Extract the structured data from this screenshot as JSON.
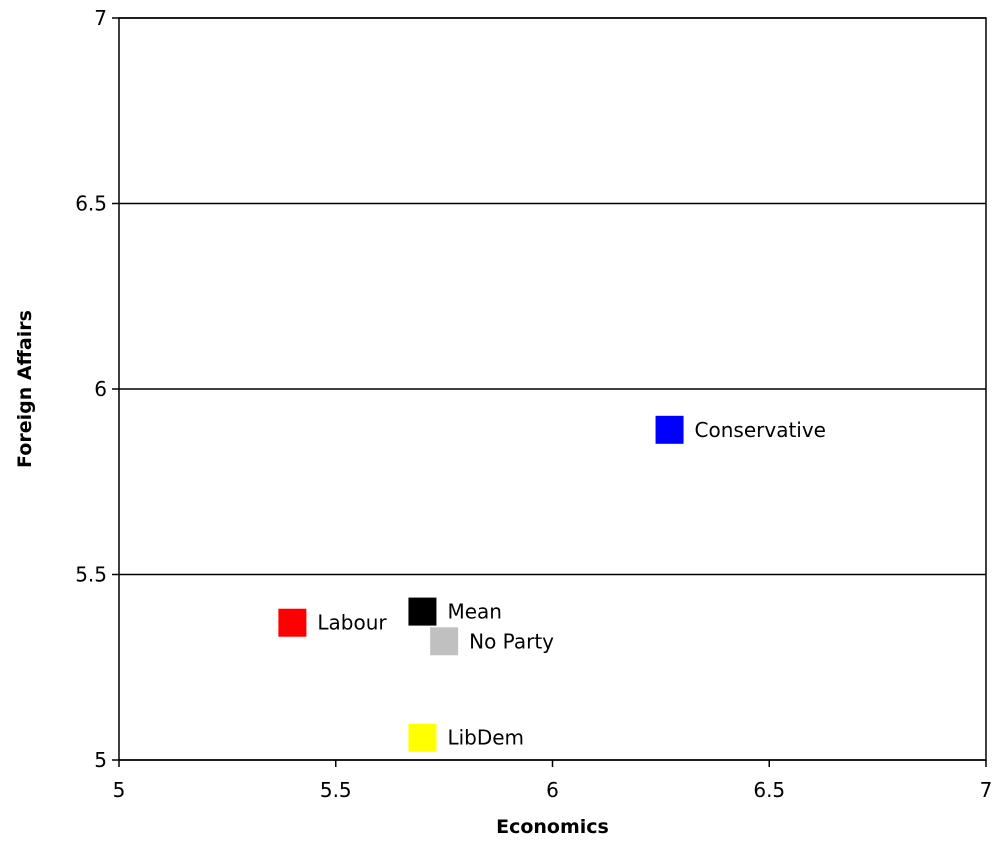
{
  "chart_data": {
    "type": "scatter",
    "title": "",
    "xlabel": "Economics",
    "ylabel": "Foreign Affairs",
    "xlim": [
      5,
      7
    ],
    "ylim": [
      5,
      7
    ],
    "x_ticks": [
      "5",
      "5.5",
      "6",
      "6.5",
      "7"
    ],
    "y_ticks": [
      "5",
      "5.5",
      "6",
      "6.5",
      "7"
    ],
    "grid": "horizontal",
    "legend": "none",
    "points": [
      {
        "label": "Conservative",
        "x": 6.27,
        "y": 5.89,
        "color": "#0000ff"
      },
      {
        "label": "Labour",
        "x": 5.4,
        "y": 5.37,
        "color": "#ff0000"
      },
      {
        "label": "Mean",
        "x": 5.7,
        "y": 5.4,
        "color": "#000000"
      },
      {
        "label": "No Party",
        "x": 5.75,
        "y": 5.32,
        "color": "#c0c0c0"
      },
      {
        "label": "LibDem",
        "x": 5.7,
        "y": 5.06,
        "color": "#ffff00"
      }
    ]
  }
}
